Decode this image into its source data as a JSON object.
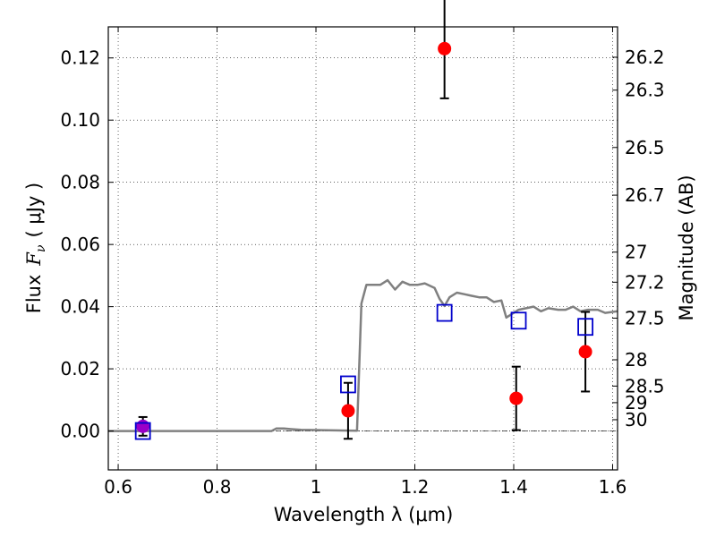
{
  "chart_data": {
    "type": "scatter",
    "xlabel": "Wavelength  λ (μm)",
    "ylabel_prefix": "Flux",
    "ylabel_symbol": "F",
    "ylabel_symbol_sub": "ν",
    "ylabel_unit": "(  μJy )",
    "y2label": "Magnitude (AB)",
    "xlim": [
      0.58,
      1.61
    ],
    "ylim": [
      -0.0125,
      0.13
    ],
    "grid": true,
    "x_ticks": [
      {
        "value": 0.6,
        "label": "0.6"
      },
      {
        "value": 0.8,
        "label": "0.8"
      },
      {
        "value": 1.0,
        "label": "1"
      },
      {
        "value": 1.2,
        "label": "1.2"
      },
      {
        "value": 1.4,
        "label": "1.4"
      },
      {
        "value": 1.6,
        "label": "1.6"
      }
    ],
    "y_ticks": [
      {
        "value": 0.0,
        "label": "0.00"
      },
      {
        "value": 0.02,
        "label": "0.02"
      },
      {
        "value": 0.04,
        "label": "0.04"
      },
      {
        "value": 0.06,
        "label": "0.06"
      },
      {
        "value": 0.08,
        "label": "0.08"
      },
      {
        "value": 0.1,
        "label": "0.10"
      },
      {
        "value": 0.12,
        "label": "0.12"
      }
    ],
    "magnitude_ticks": [
      {
        "mag": 26.2,
        "label": "26.2"
      },
      {
        "mag": 26.3,
        "label": "26.3"
      },
      {
        "mag": 26.5,
        "label": "26.5"
      },
      {
        "mag": 26.7,
        "label": "26.7"
      },
      {
        "mag": 27.0,
        "label": "27"
      },
      {
        "mag": 27.2,
        "label": "27.2"
      },
      {
        "mag": 27.5,
        "label": "27.5"
      },
      {
        "mag": 28.0,
        "label": "28"
      },
      {
        "mag": 28.5,
        "label": "28.5"
      },
      {
        "mag": 29.0,
        "label": "29"
      },
      {
        "mag": 30.0,
        "label": "30"
      }
    ],
    "observed": {
      "color": "#ff0000",
      "points": [
        {
          "x": 0.65,
          "y": 0.0015,
          "yerr": 0.003
        },
        {
          "x": 1.065,
          "y": 0.0065,
          "yerr": 0.009
        },
        {
          "x": 1.26,
          "y": 0.123,
          "yerr": 0.016
        },
        {
          "x": 1.405,
          "y": 0.0105,
          "yerr": 0.0102
        },
        {
          "x": 1.545,
          "y": 0.0255,
          "yerr": 0.0128
        }
      ]
    },
    "model_photometry": {
      "color": "#0000cc",
      "points": [
        {
          "x": 0.65,
          "y": 0.0
        },
        {
          "x": 1.065,
          "y": 0.015
        },
        {
          "x": 1.26,
          "y": 0.038
        },
        {
          "x": 1.41,
          "y": 0.0355
        },
        {
          "x": 1.545,
          "y": 0.0335
        }
      ]
    },
    "model_spectrum": {
      "color": "#808080",
      "points": [
        [
          0.58,
          0.0
        ],
        [
          0.91,
          0.0
        ],
        [
          0.92,
          0.0008
        ],
        [
          0.935,
          0.0008
        ],
        [
          0.95,
          0.0006
        ],
        [
          0.97,
          0.0004
        ],
        [
          1.0,
          0.0003
        ],
        [
          1.04,
          0.0002
        ],
        [
          1.083,
          0.0001
        ],
        [
          1.092,
          0.041
        ],
        [
          1.102,
          0.047
        ],
        [
          1.115,
          0.047
        ],
        [
          1.13,
          0.047
        ],
        [
          1.145,
          0.0485
        ],
        [
          1.16,
          0.0455
        ],
        [
          1.175,
          0.048
        ],
        [
          1.19,
          0.047
        ],
        [
          1.205,
          0.047
        ],
        [
          1.22,
          0.0475
        ],
        [
          1.24,
          0.046
        ],
        [
          1.25,
          0.0425
        ],
        [
          1.26,
          0.0402
        ],
        [
          1.27,
          0.043
        ],
        [
          1.285,
          0.0445
        ],
        [
          1.3,
          0.044
        ],
        [
          1.315,
          0.0435
        ],
        [
          1.33,
          0.043
        ],
        [
          1.345,
          0.043
        ],
        [
          1.36,
          0.0415
        ],
        [
          1.375,
          0.042
        ],
        [
          1.385,
          0.0365
        ],
        [
          1.395,
          0.0375
        ],
        [
          1.41,
          0.039
        ],
        [
          1.425,
          0.0395
        ],
        [
          1.44,
          0.04
        ],
        [
          1.455,
          0.0385
        ],
        [
          1.47,
          0.0395
        ],
        [
          1.49,
          0.039
        ],
        [
          1.505,
          0.039
        ],
        [
          1.52,
          0.04
        ],
        [
          1.535,
          0.0385
        ],
        [
          1.55,
          0.039
        ],
        [
          1.57,
          0.039
        ],
        [
          1.585,
          0.038
        ],
        [
          1.61,
          0.0385
        ]
      ]
    },
    "zero_line": {
      "y": 0.0,
      "style": "dash-dot"
    },
    "overlap_color": "#9a00c8"
  }
}
